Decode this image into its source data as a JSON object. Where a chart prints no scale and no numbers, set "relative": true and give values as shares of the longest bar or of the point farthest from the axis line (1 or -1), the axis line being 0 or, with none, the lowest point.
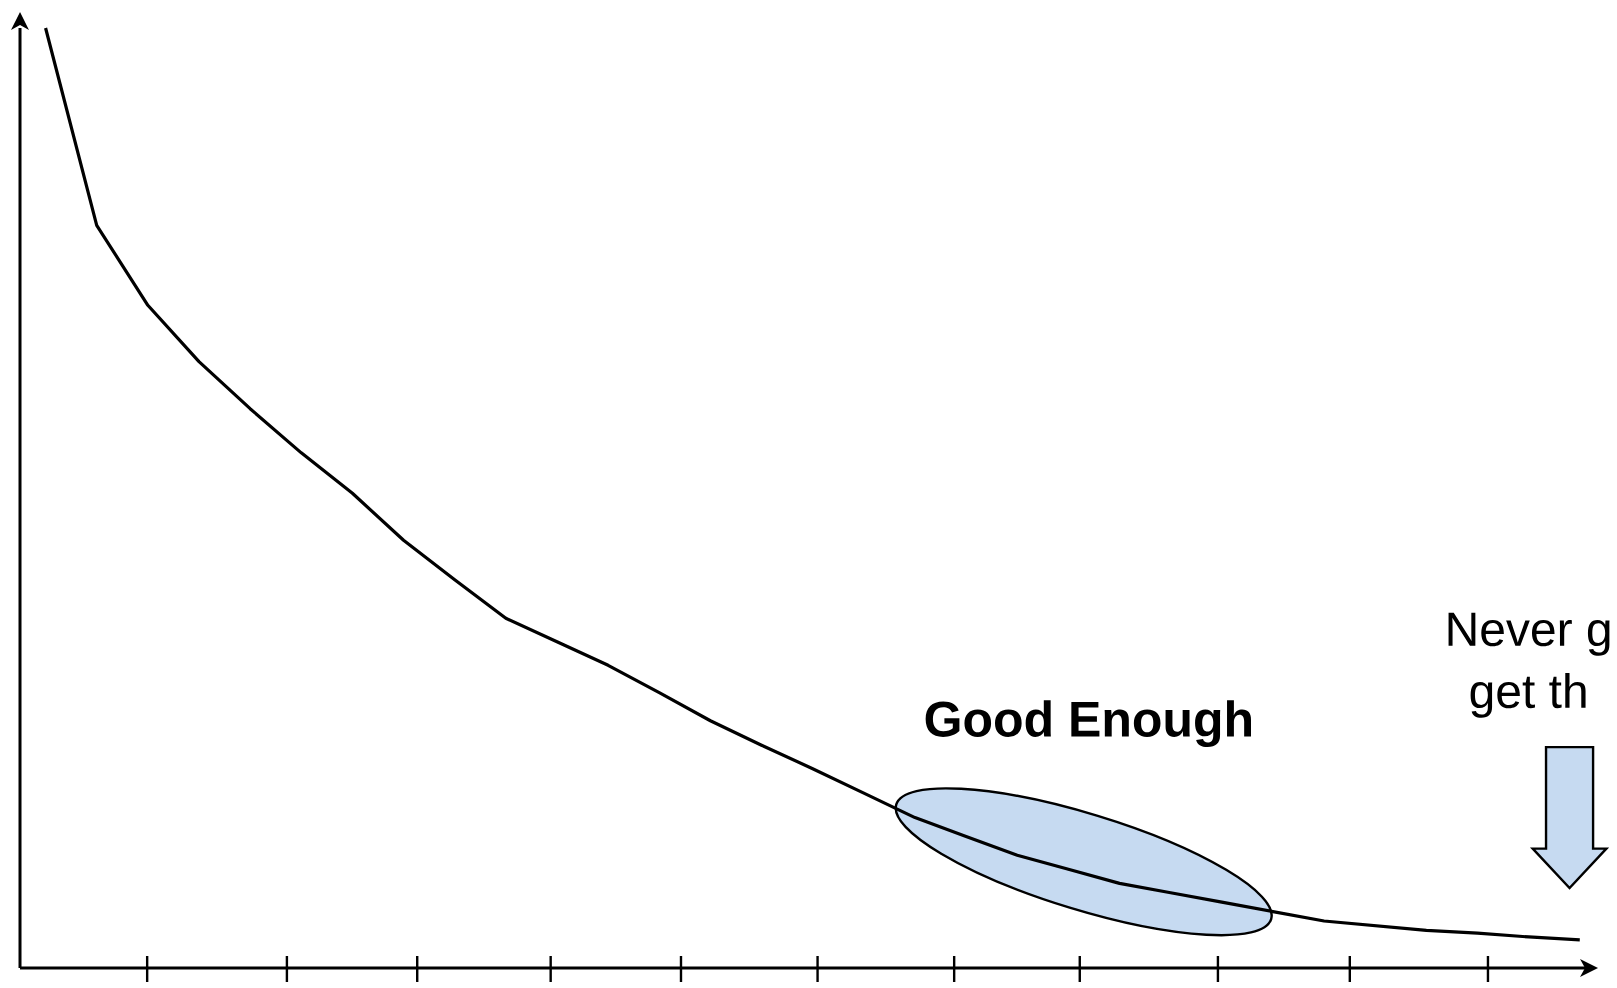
{
  "chart_data": {
    "type": "line",
    "relative": true,
    "categories": [
      null,
      null,
      null,
      null,
      null,
      null,
      null,
      null,
      null,
      null,
      null,
      null,
      null,
      null,
      null,
      null,
      null,
      null,
      null,
      null,
      null,
      null,
      null,
      null,
      null,
      null,
      null,
      null,
      null,
      null,
      null
    ],
    "series": [
      {
        "color": "#000000",
        "values": [
          1.0,
          0.79,
          0.705,
          0.645,
          0.595,
          0.548,
          0.505,
          0.455,
          0.413,
          0.372,
          0.347,
          0.322,
          0.293,
          0.263,
          0.237,
          0.212,
          0.186,
          0.16,
          0.14,
          0.12,
          0.105,
          0.09,
          0.08,
          0.07,
          0.06,
          0.05,
          0.045,
          0.04,
          0.037,
          0.033,
          0.03
        ]
      }
    ],
    "annotations": [
      "Good Enough",
      "Never g",
      "get th"
    ]
  }
}
